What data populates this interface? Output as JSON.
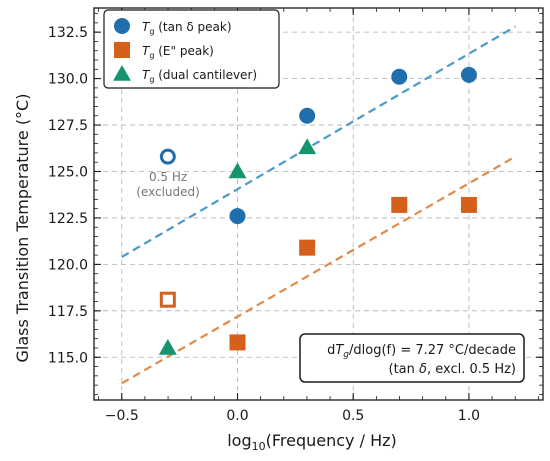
{
  "chart_data": {
    "type": "scatter",
    "xlabel": {
      "pre": "log",
      "sub": "10",
      "post": "(Frequency / Hz)"
    },
    "ylabel": "Glass Transition Temperature (°C)",
    "xlim": [
      -0.62,
      1.32
    ],
    "ylim": [
      112.7,
      133.8
    ],
    "x_ticks": [
      -0.5,
      0.0,
      0.5,
      1.0
    ],
    "x_tick_labels": [
      "−0.5",
      "0.0",
      "0.5",
      "1.0"
    ],
    "y_ticks": [
      115.0,
      117.5,
      120.0,
      122.5,
      125.0,
      127.5,
      130.0,
      132.5
    ],
    "y_tick_labels": [
      "115.0",
      "117.5",
      "120.0",
      "122.5",
      "125.0",
      "127.5",
      "130.0",
      "132.5"
    ],
    "grid": true,
    "legend_position": "top-left",
    "series": [
      {
        "name": "T_g (tan δ peak)",
        "legend": {
          "sym": "T",
          "sub": "g",
          "text": "(tan δ peak)"
        },
        "marker": "circle",
        "color": "#1f6fae",
        "points": [
          {
            "x": 0.0,
            "y": 122.6
          },
          {
            "x": 0.301,
            "y": 128.0
          },
          {
            "x": 0.699,
            "y": 130.1
          },
          {
            "x": 1.0,
            "y": 130.2
          }
        ]
      },
      {
        "name": "T_g (E\" peak)",
        "legend": {
          "sym": "T",
          "sub": "g",
          "text": "(E\" peak)"
        },
        "marker": "square",
        "color": "#d4601c",
        "points": [
          {
            "x": 0.0,
            "y": 115.8
          },
          {
            "x": 0.301,
            "y": 120.9
          },
          {
            "x": 0.699,
            "y": 123.2
          },
          {
            "x": 1.0,
            "y": 123.2
          }
        ]
      },
      {
        "name": "T_g (dual cantilever)",
        "legend": {
          "sym": "T",
          "sub": "g",
          "text": "(dual cantilever)"
        },
        "marker": "triangle",
        "color": "#15956e",
        "points": [
          {
            "x": -0.301,
            "y": 115.5
          },
          {
            "x": 0.0,
            "y": 125.0
          },
          {
            "x": 0.301,
            "y": 126.3
          }
        ]
      }
    ],
    "excluded_points": [
      {
        "series": "T_g (tan δ peak)",
        "marker": "circle",
        "color": "#1f6fae",
        "x": -0.301,
        "y": 125.8
      },
      {
        "series": "T_g (E\" peak)",
        "marker": "square",
        "color": "#d4601c",
        "x": -0.301,
        "y": 118.1
      }
    ],
    "fit_lines": [
      {
        "series": "T_g (tan δ peak)",
        "color": "#4a9ac8",
        "x": [
          -0.5,
          1.2
        ],
        "y": [
          120.4,
          132.8
        ]
      },
      {
        "series": "T_g (E\" peak)",
        "color": "#e08a4a",
        "x": [
          -0.5,
          1.2
        ],
        "y": [
          113.6,
          125.8
        ]
      }
    ],
    "annotations": [
      {
        "text_line1": "0.5 Hz",
        "text_line2": "(excluded)",
        "x": -0.3,
        "y": 124.5
      }
    ],
    "info_box": {
      "line1": {
        "pre": "d",
        "sym": "T",
        "sub": "g",
        "post": "/dlog(f) = 7.27 °C/decade"
      },
      "line2": {
        "pre": "(tan ",
        "sym": "δ",
        "post": ", excl. 0.5 Hz)"
      }
    }
  }
}
